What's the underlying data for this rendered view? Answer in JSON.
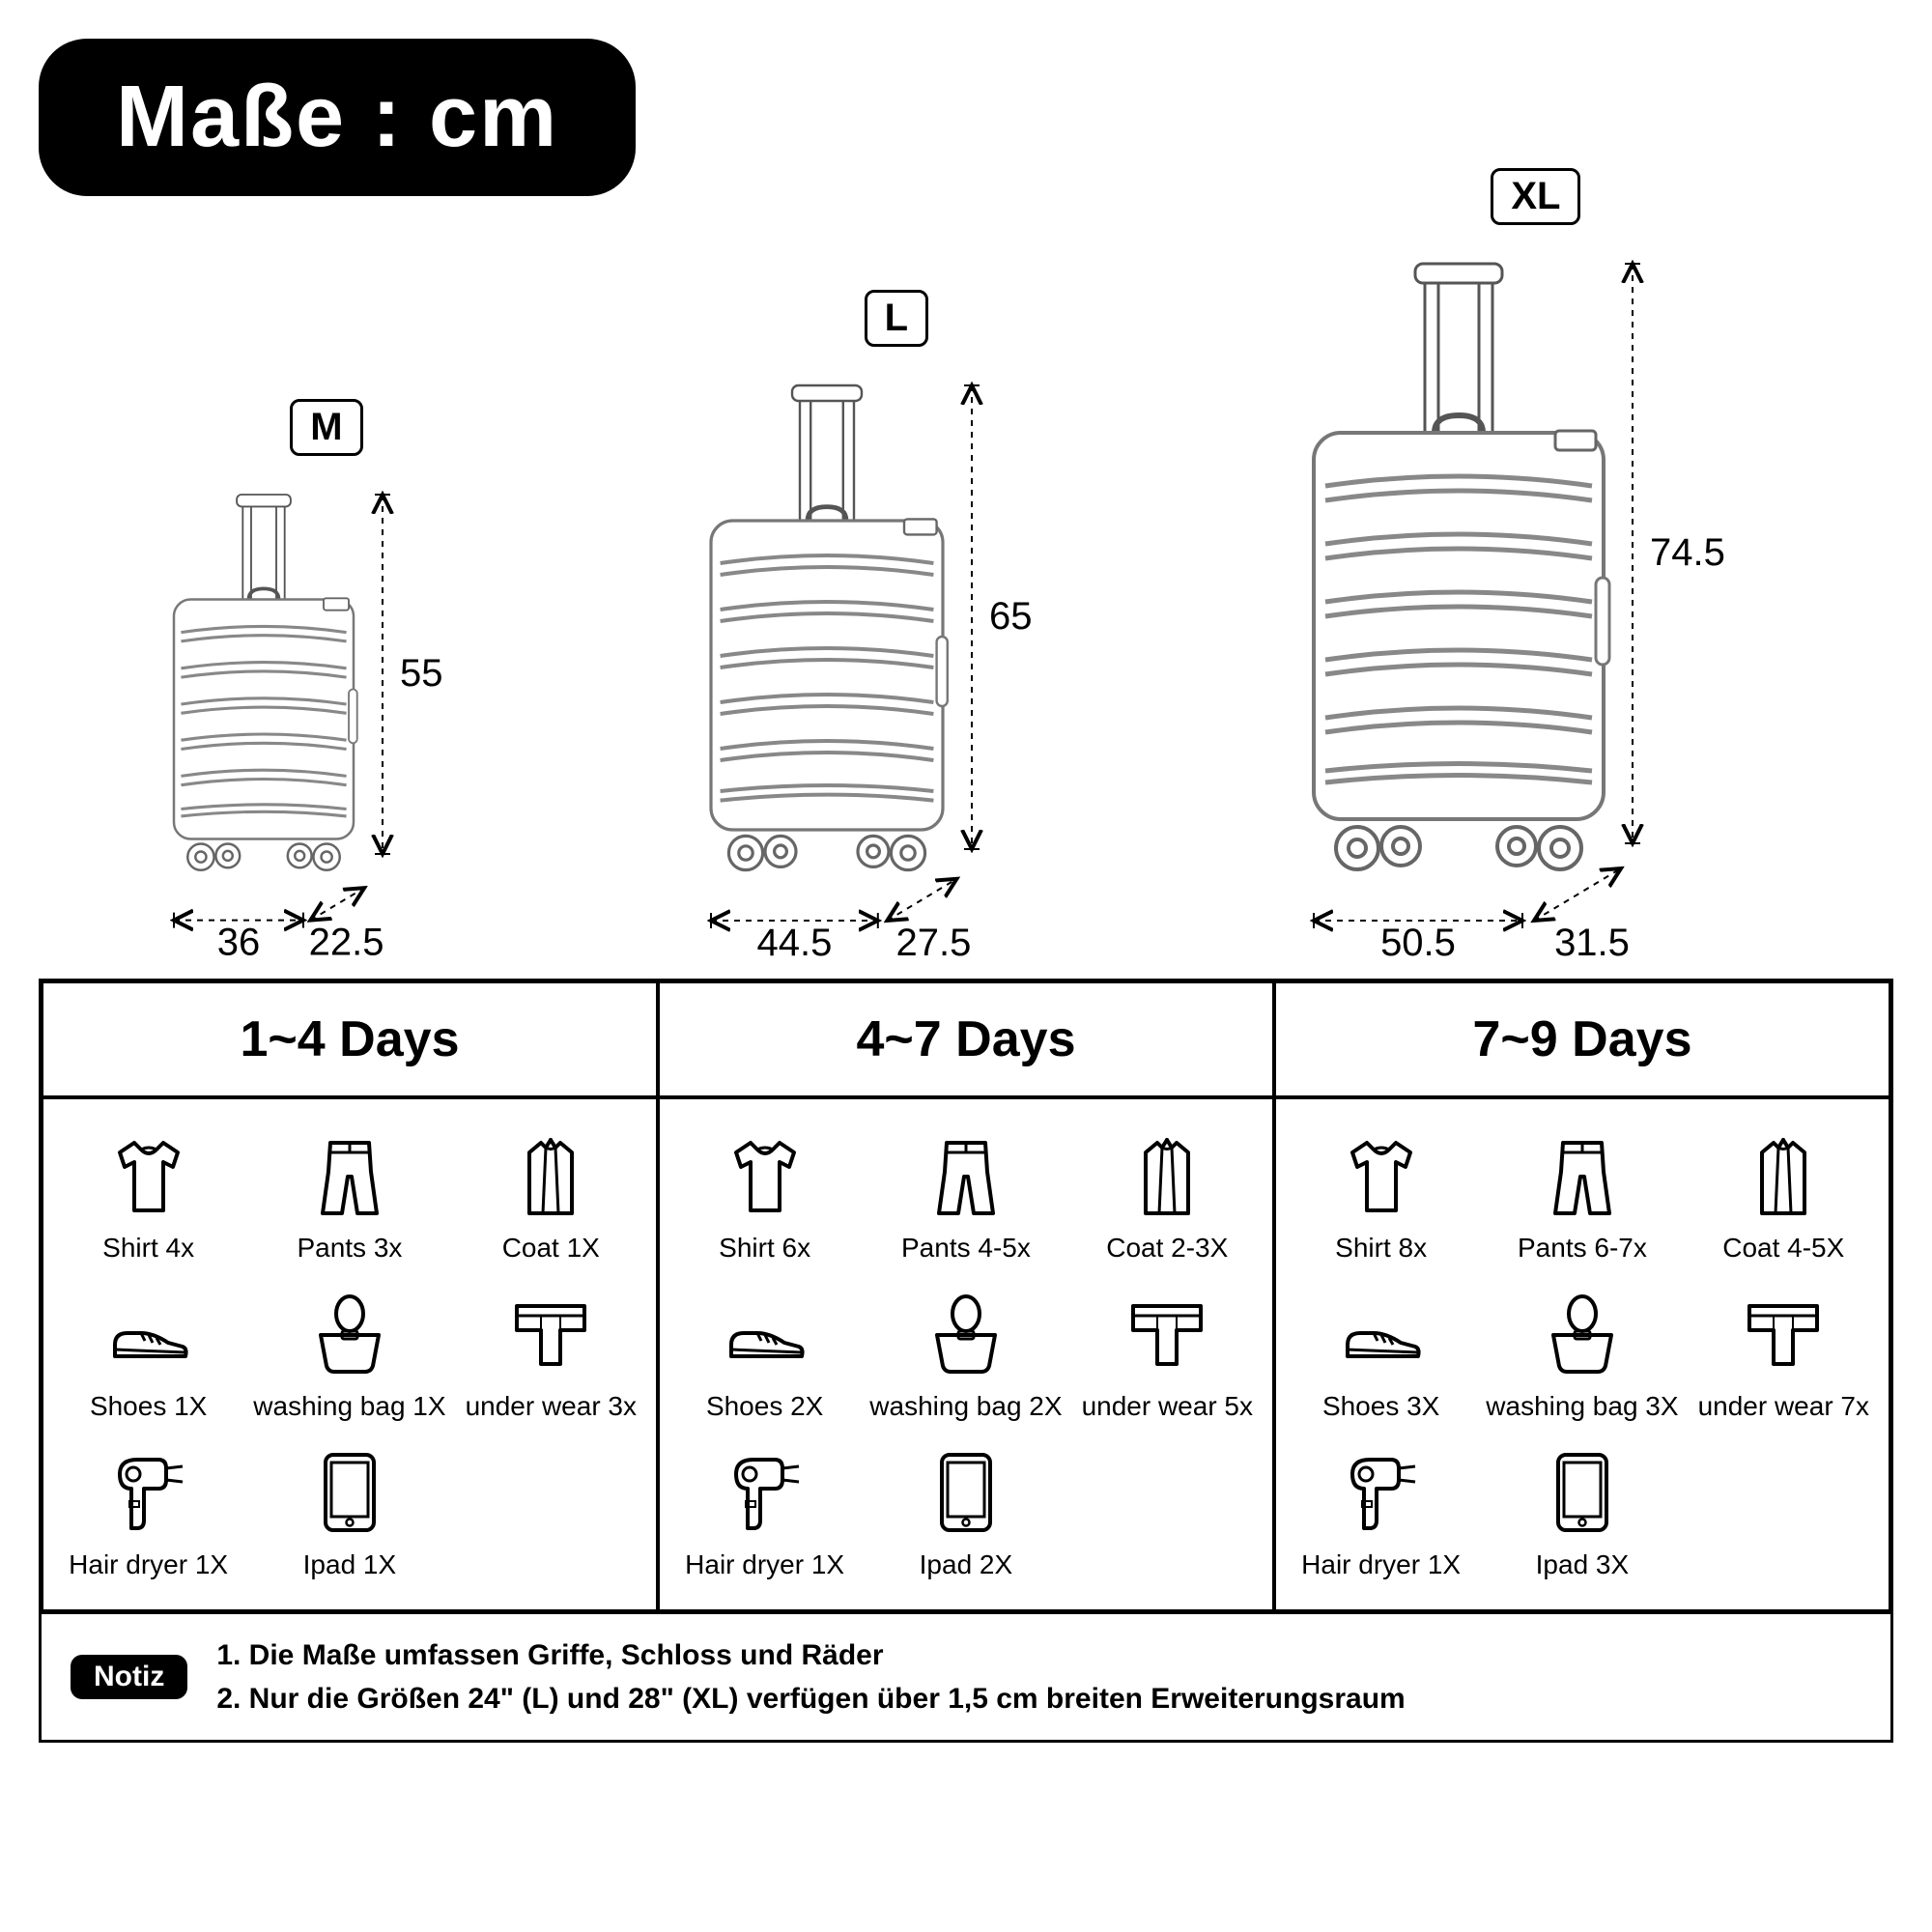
{
  "title": "Maße : cm",
  "colors": {
    "background": "#ffffff",
    "foreground": "#000000",
    "badge_bg": "#000000",
    "badge_text": "#ffffff",
    "border": "#000000"
  },
  "suitcases": [
    {
      "size_label": "M",
      "height": "55",
      "width": "36",
      "depth": "22.5",
      "scale": 0.62
    },
    {
      "size_label": "L",
      "height": "65",
      "width": "44.5",
      "depth": "27.5",
      "scale": 0.8
    },
    {
      "size_label": "XL",
      "height": "74.5",
      "width": "50.5",
      "depth": "31.5",
      "scale": 1.0
    }
  ],
  "packing": {
    "headers": [
      "1~4 Days",
      "4~7 Days",
      "7~9 Days"
    ],
    "columns": [
      [
        {
          "icon": "shirt",
          "label": "Shirt 4x"
        },
        {
          "icon": "pants",
          "label": "Pants 3x"
        },
        {
          "icon": "coat",
          "label": "Coat 1X"
        },
        {
          "icon": "shoes",
          "label": "Shoes 1X"
        },
        {
          "icon": "bag",
          "label": "washing bag 1X"
        },
        {
          "icon": "underwear",
          "label": "under wear 3x"
        },
        {
          "icon": "dryer",
          "label": "Hair dryer 1X"
        },
        {
          "icon": "ipad",
          "label": "Ipad 1X"
        }
      ],
      [
        {
          "icon": "shirt",
          "label": "Shirt 6x"
        },
        {
          "icon": "pants",
          "label": "Pants 4-5x"
        },
        {
          "icon": "coat",
          "label": "Coat 2-3X"
        },
        {
          "icon": "shoes",
          "label": "Shoes 2X"
        },
        {
          "icon": "bag",
          "label": "washing bag 2X"
        },
        {
          "icon": "underwear",
          "label": "under wear 5x"
        },
        {
          "icon": "dryer",
          "label": "Hair dryer 1X"
        },
        {
          "icon": "ipad",
          "label": "Ipad 2X"
        }
      ],
      [
        {
          "icon": "shirt",
          "label": "Shirt 8x"
        },
        {
          "icon": "pants",
          "label": "Pants 6-7x"
        },
        {
          "icon": "coat",
          "label": "Coat 4-5X"
        },
        {
          "icon": "shoes",
          "label": "Shoes 3X"
        },
        {
          "icon": "bag",
          "label": "washing bag 3X"
        },
        {
          "icon": "underwear",
          "label": "under wear 7x"
        },
        {
          "icon": "dryer",
          "label": "Hair dryer 1X"
        },
        {
          "icon": "ipad",
          "label": "Ipad 3X"
        }
      ]
    ]
  },
  "footer": {
    "badge": "Notiz",
    "line1": "1. Die Maße umfassen Griffe, Schloss und Räder",
    "line2": "2. Nur die Größen 24\" (L) und 28\" (XL) verfügen über 1,5 cm breiten Erweiterungsraum"
  }
}
